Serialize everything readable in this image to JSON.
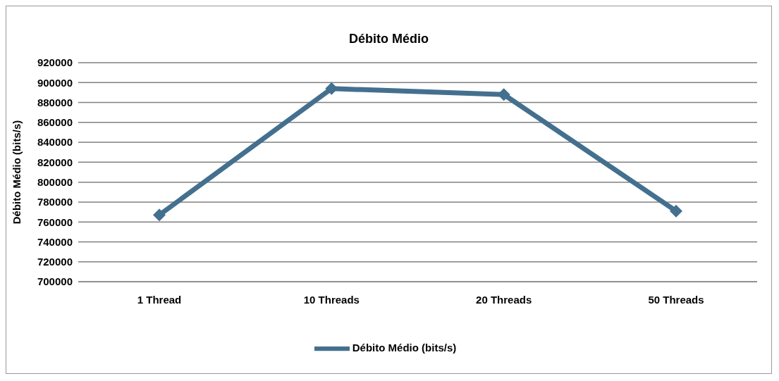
{
  "chart_data": {
    "type": "line",
    "title": "Débito Médio",
    "ylabel": "Débito Médio (bits/s)",
    "categories": [
      "1 Thread",
      "10 Threads",
      "20 Threads",
      "50 Threads"
    ],
    "series": [
      {
        "name": "Débito Médio (bits/s)",
        "color": "#44708f",
        "values": [
          767000,
          894000,
          888000,
          771000
        ]
      }
    ],
    "ylim": [
      700000,
      920000
    ],
    "yticks": [
      700000,
      720000,
      740000,
      760000,
      780000,
      800000,
      820000,
      840000,
      860000,
      880000,
      900000,
      920000
    ],
    "grid": "y",
    "legend": "bottom",
    "marker": "diamond"
  }
}
